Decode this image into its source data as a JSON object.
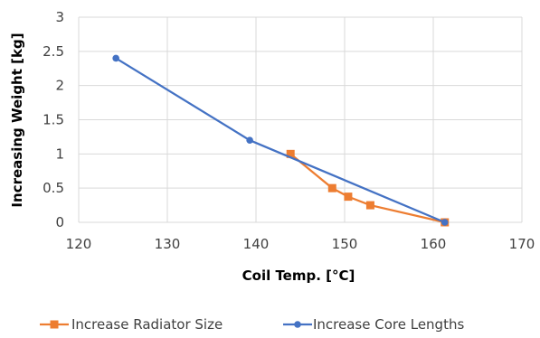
{
  "chart_data": {
    "type": "scatter",
    "xlabel": "Coil Temp. [°C]",
    "ylabel": "Increasing Weight [kg]",
    "xlim": [
      120,
      170
    ],
    "ylim": [
      0,
      3
    ],
    "x_ticks": [
      120,
      130,
      140,
      150,
      160,
      170
    ],
    "y_ticks": [
      0,
      0.5,
      1,
      1.5,
      2,
      2.5,
      3
    ],
    "x_tick_labels": [
      "120",
      "130",
      "140",
      "150",
      "160",
      "170"
    ],
    "y_tick_labels": [
      "0",
      "0.5",
      "1",
      "1.5",
      "2",
      "2.5",
      "3"
    ],
    "grid": true,
    "legend_position": "bottom",
    "series": [
      {
        "name": "Increase Radiator Size",
        "color": "#ed7d31",
        "marker": "square",
        "x": [
          161.3,
          152.9,
          150.4,
          148.6,
          143.9
        ],
        "y": [
          0,
          0.25,
          0.375,
          0.5,
          1.0
        ]
      },
      {
        "name": "Increase Core Lengths",
        "color": "#4472c4",
        "marker": "circle",
        "x": [
          161.3,
          139.3,
          124.2
        ],
        "y": [
          0,
          1.2,
          2.4
        ]
      }
    ]
  }
}
